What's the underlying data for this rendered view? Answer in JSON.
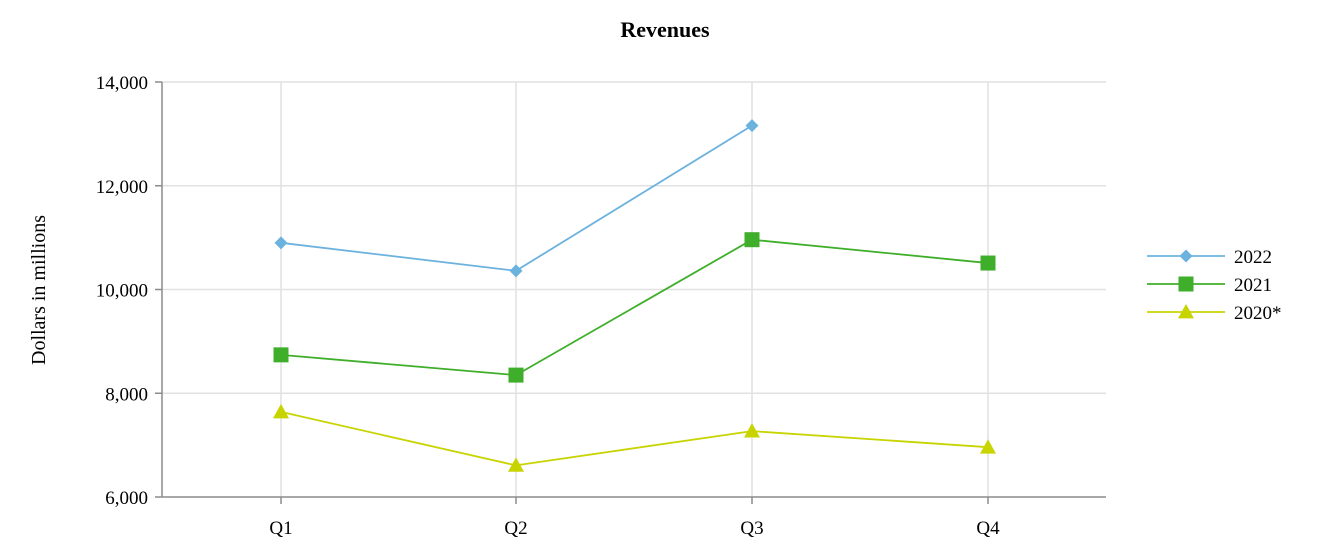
{
  "chart_data": {
    "type": "line",
    "title": "Revenues",
    "xlabel": "",
    "ylabel": "Dollars in millions",
    "categories": [
      "Q1",
      "Q2",
      "Q3",
      "Q4"
    ],
    "ylim": [
      6000,
      14000
    ],
    "yticks": [
      6000,
      8000,
      10000,
      12000,
      14000
    ],
    "ytick_labels": [
      "6,000",
      "8,000",
      "10,000",
      "12,000",
      "14,000"
    ],
    "grid": true,
    "legend_position": "right",
    "series": [
      {
        "name": "2022",
        "color": "#6cb2de",
        "marker": "diamond",
        "values": [
          10900,
          10360,
          13160,
          null
        ]
      },
      {
        "name": "2021",
        "color": "#3fae2a",
        "marker": "square",
        "values": [
          8740,
          8350,
          10960,
          10510
        ]
      },
      {
        "name": "2020*",
        "color": "#c8d400",
        "marker": "triangle",
        "values": [
          7640,
          6610,
          7270,
          6960
        ]
      }
    ]
  }
}
